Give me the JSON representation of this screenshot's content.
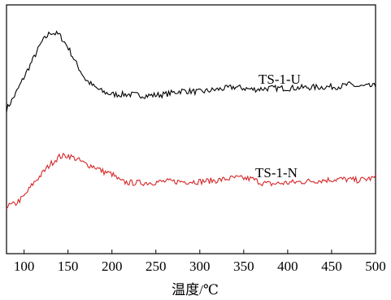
{
  "chart_data": {
    "type": "line",
    "title": "",
    "xlabel": "温度/℃",
    "ylabel": "",
    "xlim": [
      80,
      500
    ],
    "ylim": [
      0,
      1
    ],
    "x_ticks": [
      100,
      150,
      200,
      250,
      300,
      350,
      400,
      450,
      500
    ],
    "y_ticks_shown": false,
    "grid": false,
    "legend": "none",
    "series": [
      {
        "name": "TS-1-U",
        "color": "#000000",
        "noise": 0.012,
        "points": [
          [
            80,
            0.58
          ],
          [
            90,
            0.64
          ],
          [
            100,
            0.71
          ],
          [
            110,
            0.78
          ],
          [
            120,
            0.85
          ],
          [
            130,
            0.89
          ],
          [
            140,
            0.88
          ],
          [
            150,
            0.83
          ],
          [
            160,
            0.76
          ],
          [
            170,
            0.7
          ],
          [
            180,
            0.67
          ],
          [
            190,
            0.65
          ],
          [
            200,
            0.64
          ],
          [
            220,
            0.64
          ],
          [
            240,
            0.635
          ],
          [
            260,
            0.64
          ],
          [
            280,
            0.655
          ],
          [
            300,
            0.65
          ],
          [
            320,
            0.66
          ],
          [
            340,
            0.67
          ],
          [
            360,
            0.66
          ],
          [
            380,
            0.665
          ],
          [
            400,
            0.665
          ],
          [
            420,
            0.668
          ],
          [
            440,
            0.67
          ],
          [
            460,
            0.672
          ],
          [
            470,
            0.68
          ],
          [
            480,
            0.672
          ],
          [
            500,
            0.673
          ]
        ]
      },
      {
        "name": "TS-1-N",
        "color": "#d62728",
        "noise": 0.012,
        "points": [
          [
            80,
            0.19
          ],
          [
            90,
            0.2
          ],
          [
            100,
            0.23
          ],
          [
            110,
            0.28
          ],
          [
            120,
            0.32
          ],
          [
            130,
            0.36
          ],
          [
            140,
            0.39
          ],
          [
            150,
            0.395
          ],
          [
            160,
            0.38
          ],
          [
            170,
            0.36
          ],
          [
            180,
            0.35
          ],
          [
            190,
            0.33
          ],
          [
            200,
            0.32
          ],
          [
            210,
            0.29
          ],
          [
            220,
            0.285
          ],
          [
            240,
            0.285
          ],
          [
            260,
            0.29
          ],
          [
            280,
            0.29
          ],
          [
            300,
            0.29
          ],
          [
            320,
            0.295
          ],
          [
            340,
            0.305
          ],
          [
            360,
            0.3
          ],
          [
            370,
            0.285
          ],
          [
            380,
            0.28
          ],
          [
            400,
            0.285
          ],
          [
            420,
            0.29
          ],
          [
            440,
            0.295
          ],
          [
            460,
            0.3
          ],
          [
            480,
            0.295
          ],
          [
            500,
            0.305
          ]
        ]
      }
    ]
  }
}
